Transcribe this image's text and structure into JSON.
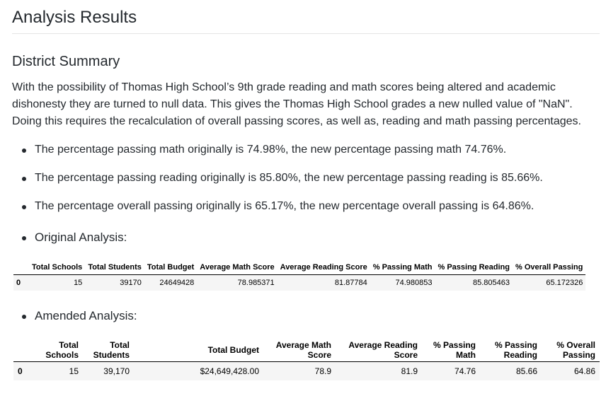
{
  "title": "Analysis Results",
  "subtitle": "District Summary",
  "intro": "With the possibility of Thomas High School’s 9th grade reading and math scores being altered and academic dishonesty they are turned to null data. This gives the Thomas High School grades a new nulled value of \"NaN\". Doing this requires the recalculation of overall passing scores, as well as, reading and math passing percentages.",
  "bullets": [
    "The percentage passing math originally is 74.98%, the new percentage passing math 74.76%.",
    "The percentage passing reading originally is 85.80%, the new percentage passing reading is 85.66%.",
    "The percentage overall passing originally is 65.17%, the new percentage overall passing is 64.86%."
  ],
  "original": {
    "label": "Original Analysis:",
    "columns": [
      "Total Schools",
      "Total Students",
      "Total Budget",
      "Average Math Score",
      "Average Reading Score",
      "% Passing Math",
      "% Passing Reading",
      "% Overall Passing"
    ],
    "rows": [
      {
        "index": "0",
        "cells": [
          "15",
          "39170",
          "24649428",
          "78.985371",
          "81.87784",
          "74.980853",
          "85.805463",
          "65.172326"
        ]
      }
    ]
  },
  "amended": {
    "label": "Amended Analysis:",
    "columns": [
      "Total Schools",
      "Total Students",
      "Total Budget",
      "Average Math Score",
      "Average Reading Score",
      "% Passing Math",
      "% Passing Reading",
      "% Overall Passing"
    ],
    "rows": [
      {
        "index": "0",
        "cells": [
          "15",
          "39,170",
          "$24,649,428.00",
          "78.9",
          "81.9",
          "74.76",
          "85.66",
          "64.86"
        ]
      }
    ]
  }
}
